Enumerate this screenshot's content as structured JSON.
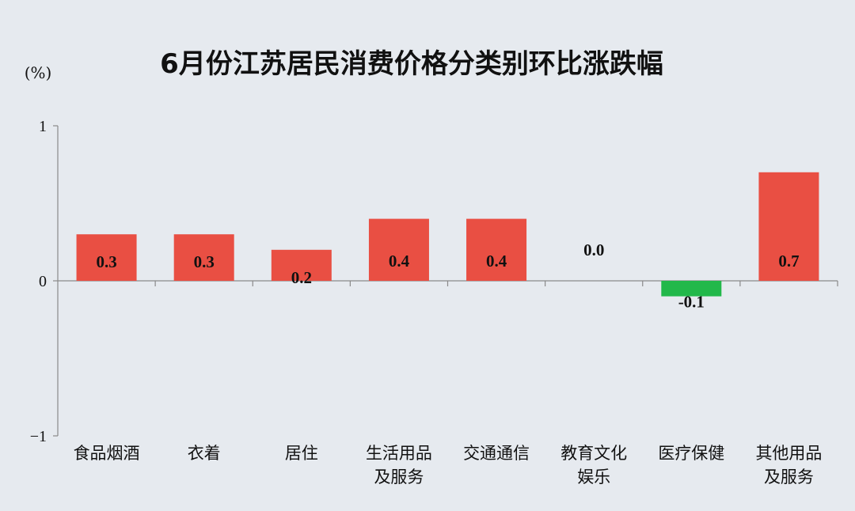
{
  "chart_data": {
    "type": "bar",
    "title": "6月份江苏居民消费价格分类别环比涨跌幅",
    "unit_label": "(%)",
    "categories": [
      [
        "食品烟酒"
      ],
      [
        "衣着"
      ],
      [
        "居住"
      ],
      [
        "生活用品",
        "及服务"
      ],
      [
        "交通通信"
      ],
      [
        "教育文化",
        "娱乐"
      ],
      [
        "医疗保健"
      ],
      [
        "其他用品",
        "及服务"
      ]
    ],
    "values": [
      0.3,
      0.3,
      0.2,
      0.4,
      0.4,
      0.0,
      -0.1,
      0.7
    ],
    "data_labels": [
      "0.3",
      "0.3",
      "0.2",
      "0.4",
      "0.4",
      "0.0",
      "-0.1",
      "0.7"
    ],
    "ylim": [
      -1,
      1
    ],
    "yticks": [
      1,
      0,
      -1
    ],
    "ytick_labels": [
      "1",
      "0",
      "−1"
    ],
    "grid": false,
    "legend": "none",
    "colors": {
      "positive": "#e94f43",
      "negative": "#22b84a",
      "background": "#e6eaef",
      "axis": "#8a8a8a"
    }
  }
}
